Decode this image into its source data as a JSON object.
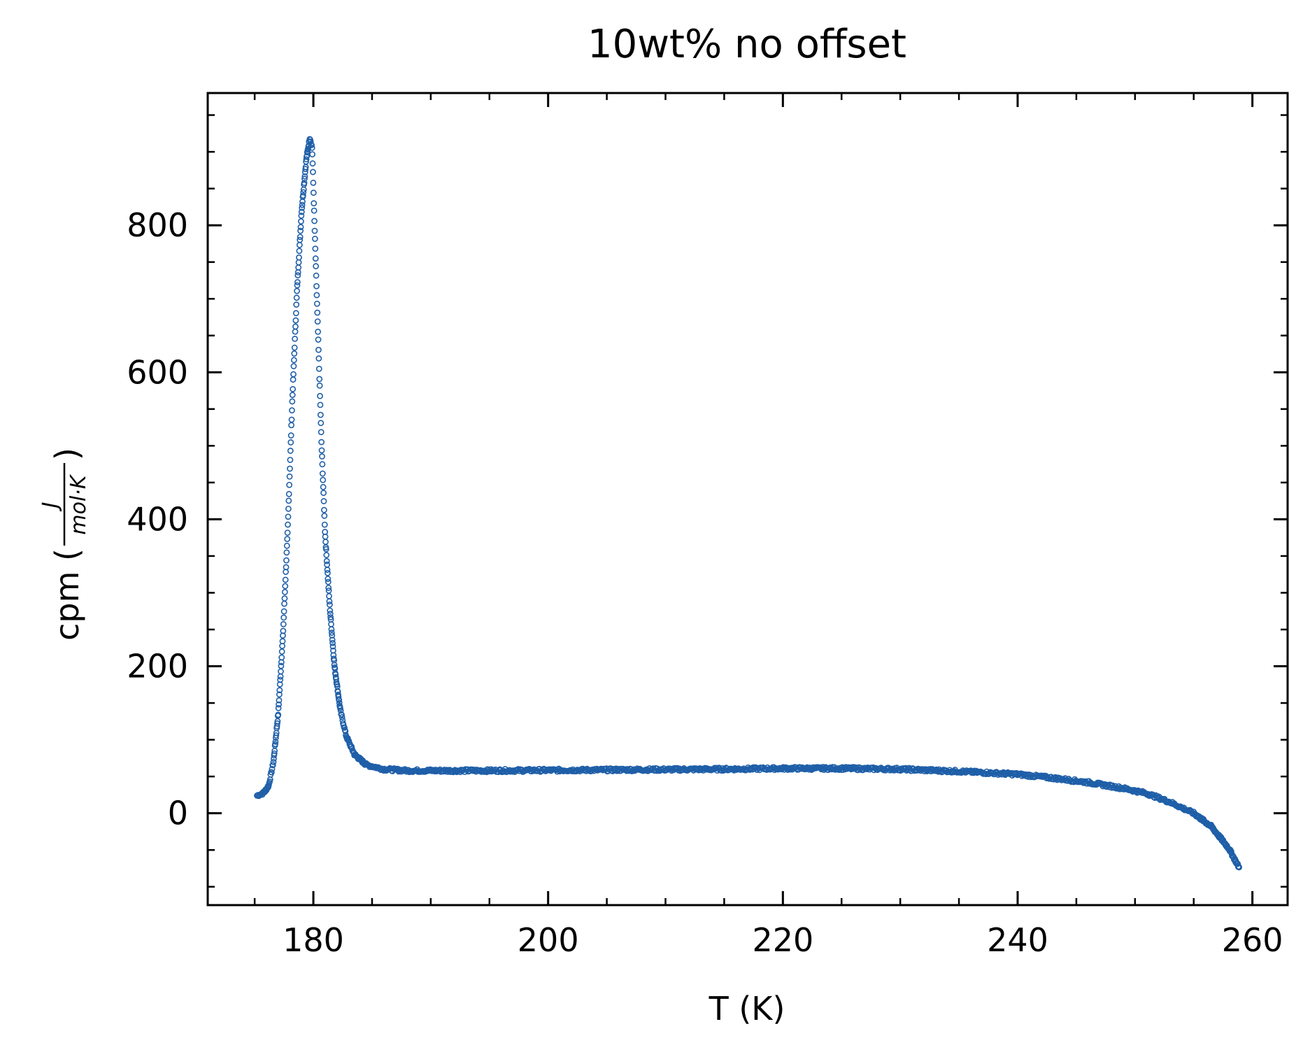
{
  "chart_data": {
    "type": "scatter",
    "title": "10wt% no offset",
    "xlabel": "T (K)",
    "ylabel": {
      "prefix": "cpm (",
      "numerator": "J",
      "denominator": "mol·K",
      "suffix": ")"
    },
    "xlim": [
      171,
      263
    ],
    "ylim": [
      -125,
      980
    ],
    "xticks": [
      180,
      200,
      220,
      240,
      260
    ],
    "yticks": [
      0,
      200,
      400,
      600,
      800
    ],
    "xtick_labels": [
      "180",
      "200",
      "220",
      "240",
      "260"
    ],
    "ytick_labels": [
      "0",
      "200",
      "400",
      "600",
      "800"
    ],
    "x_minor_step": 5,
    "y_minor_step": 50,
    "grid": false,
    "marker": "open-circle",
    "series_color": "#1f5fa8",
    "x_range": [
      175.2,
      258.9
    ],
    "curve_knots": [
      [
        175.2,
        24
      ],
      [
        175.8,
        28
      ],
      [
        176.2,
        38
      ],
      [
        176.6,
        70
      ],
      [
        177.0,
        135
      ],
      [
        177.4,
        240
      ],
      [
        177.8,
        380
      ],
      [
        178.2,
        560
      ],
      [
        178.6,
        710
      ],
      [
        179.0,
        820
      ],
      [
        179.4,
        890
      ],
      [
        179.7,
        920
      ],
      [
        179.9,
        905
      ],
      [
        180.1,
        800
      ],
      [
        180.4,
        650
      ],
      [
        180.7,
        500
      ],
      [
        181.0,
        380
      ],
      [
        181.4,
        280
      ],
      [
        181.8,
        200
      ],
      [
        182.3,
        140
      ],
      [
        182.8,
        105
      ],
      [
        183.5,
        80
      ],
      [
        184.5,
        66
      ],
      [
        186,
        60
      ],
      [
        188,
        58
      ],
      [
        195,
        58
      ],
      [
        205,
        59
      ],
      [
        215,
        60
      ],
      [
        220,
        61
      ],
      [
        225,
        61
      ],
      [
        230,
        60
      ],
      [
        235,
        57
      ],
      [
        240,
        53
      ],
      [
        243,
        48
      ],
      [
        246,
        42
      ],
      [
        249,
        34
      ],
      [
        251,
        27
      ],
      [
        253,
        15
      ],
      [
        255,
        0
      ],
      [
        256.5,
        -18
      ],
      [
        258,
        -48
      ],
      [
        258.9,
        -75
      ]
    ]
  }
}
